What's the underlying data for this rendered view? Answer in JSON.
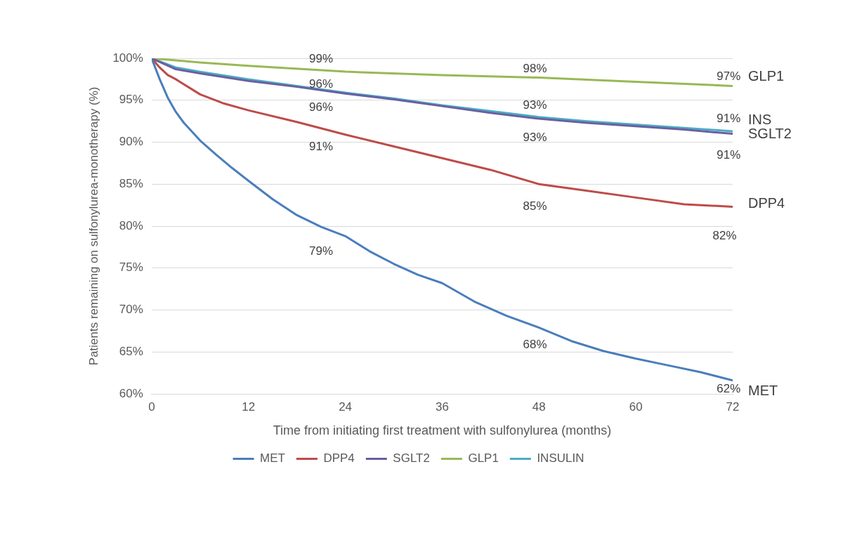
{
  "chart_data": {
    "type": "line",
    "xlabel": "Time from initiating first treatment with sulfonylurea (months)",
    "ylabel": "Patients remaining on sulfonylurea-monotherapy (%)",
    "xlim": [
      0,
      72
    ],
    "xticks": [
      0,
      12,
      24,
      36,
      48,
      60,
      72
    ],
    "ylim": [
      60,
      100
    ],
    "yticks": [
      {
        "value": 60,
        "label": "60%"
      },
      {
        "value": 65,
        "label": "65%"
      },
      {
        "value": 70,
        "label": "70%"
      },
      {
        "value": 75,
        "label": "75%"
      },
      {
        "value": 80,
        "label": "80%"
      },
      {
        "value": 85,
        "label": "85%"
      },
      {
        "value": 90,
        "label": "90%"
      },
      {
        "value": 95,
        "label": "95%"
      },
      {
        "value": 100,
        "label": "100%"
      }
    ],
    "grid": "y",
    "legend": "bottom",
    "series": [
      {
        "name": "MET",
        "color": "#4a7ebb",
        "x": [
          0,
          1,
          2,
          3,
          4,
          6,
          8,
          10,
          12,
          15,
          18,
          21,
          24,
          27,
          30,
          33,
          36,
          40,
          44,
          48,
          52,
          56,
          60,
          64,
          68,
          72
        ],
        "values": [
          100,
          97.5,
          95.3,
          93.6,
          92.3,
          90.2,
          88.5,
          86.9,
          85.4,
          83.2,
          81.3,
          79.9,
          78.8,
          77,
          75.5,
          74.2,
          73.2,
          71,
          69.3,
          67.9,
          66.3,
          65.1,
          64.2,
          63.4,
          62.6,
          61.6
        ]
      },
      {
        "name": "DPP4",
        "color": "#be4b48",
        "x": [
          0,
          1,
          2,
          3,
          6,
          9,
          12,
          18,
          24,
          30,
          36,
          42,
          48,
          54,
          60,
          66,
          72
        ],
        "values": [
          100,
          98.9,
          98,
          97.5,
          95.7,
          94.6,
          93.8,
          92.4,
          90.9,
          89.5,
          88.1,
          86.7,
          85,
          84.2,
          83.4,
          82.6,
          82.3
        ]
      },
      {
        "name": "SGLT2",
        "color": "#6a5fa0",
        "x": [
          0,
          3,
          6,
          12,
          18,
          24,
          30,
          36,
          42,
          48,
          54,
          60,
          66,
          72
        ],
        "values": [
          100,
          98.7,
          98.2,
          97.3,
          96.6,
          95.8,
          95.1,
          94.3,
          93.5,
          92.8,
          92.3,
          91.9,
          91.5,
          91.0
        ]
      },
      {
        "name": "GLP1",
        "color": "#98b954",
        "x": [
          0,
          6,
          12,
          24,
          36,
          48,
          60,
          72
        ],
        "values": [
          100,
          99.5,
          99.1,
          98.4,
          98,
          97.7,
          97.2,
          96.7
        ]
      },
      {
        "name": "INSULIN",
        "color": "#4bacc6",
        "x": [
          0,
          3,
          6,
          12,
          18,
          24,
          30,
          36,
          42,
          48,
          54,
          60,
          66,
          72
        ],
        "values": [
          100,
          98.9,
          98.4,
          97.5,
          96.7,
          95.9,
          95.2,
          94.4,
          93.7,
          93.0,
          92.5,
          92.1,
          91.7,
          91.3
        ]
      }
    ],
    "annotations": [
      "99%",
      "96%",
      "96%",
      "91%",
      "79%",
      "98%",
      "93%",
      "93%",
      "85%",
      "68%",
      "97%",
      "91%",
      "91%",
      "82%",
      "62%",
      "GLP1",
      "INS",
      "SGLT2",
      "DPP4",
      "MET"
    ]
  }
}
